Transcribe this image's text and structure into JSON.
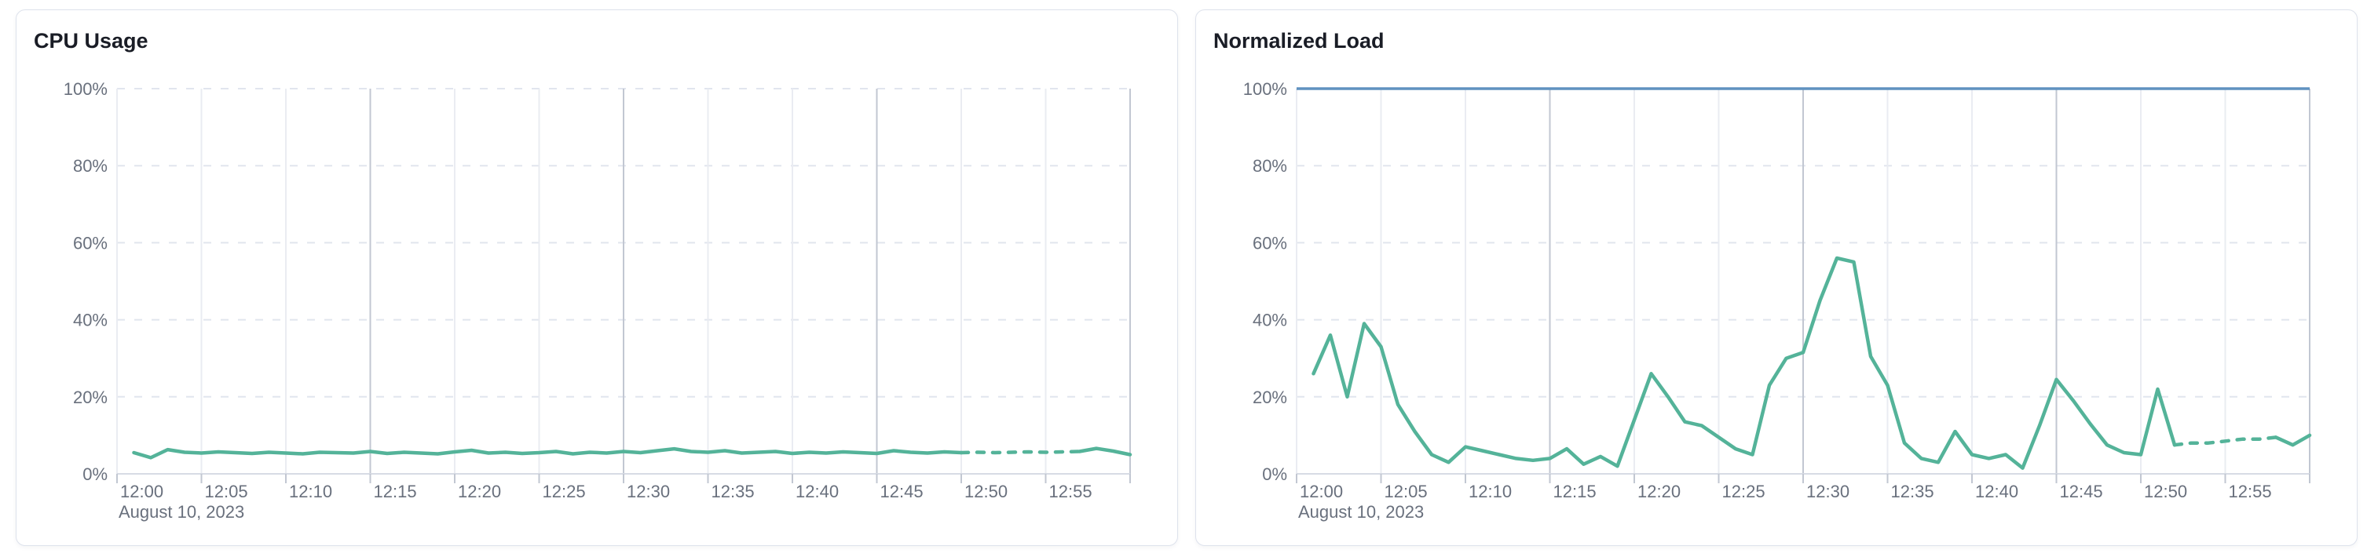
{
  "page": {
    "background": "#ffffff"
  },
  "colors": {
    "series_green": "#54b399",
    "limit_blue": "#6092c0",
    "grid_dashed": "#e1e5ee",
    "grid_minor": "#eaecf2",
    "grid_major": "#c2c7d2",
    "axis": "#d7dbe4",
    "tick_text": "#69707d",
    "title_text": "#1a1d26"
  },
  "chart_data": [
    {
      "type": "line",
      "title": "CPU Usage",
      "date_label": "August 10, 2023",
      "ylim": [
        0,
        100
      ],
      "y_tick_labels": [
        "0%",
        "20%",
        "40%",
        "60%",
        "80%",
        "100%"
      ],
      "x_tick_labels": [
        "12:00",
        "12:05",
        "12:10",
        "12:15",
        "12:20",
        "12:25",
        "12:30",
        "12:35",
        "12:40",
        "12:45",
        "12:50",
        "12:55"
      ],
      "x_tick_minutes": [
        0,
        5,
        10,
        15,
        20,
        25,
        30,
        35,
        40,
        45,
        50,
        55
      ],
      "x_domain_minutes": [
        0,
        60
      ],
      "grid": {
        "horizontal_dashed": true,
        "vertical_minor_every_min": 5,
        "vertical_major_every_min": 15,
        "top_dashed_100": true
      },
      "legend": "none",
      "series": [
        {
          "name": "cpu-usage",
          "color": "#54b399",
          "unit": "%",
          "start_minute": 1,
          "interval_minutes": 1,
          "dash_segment_minutes": [
            50,
            57
          ],
          "values": [
            5.5,
            4.2,
            6.3,
            5.6,
            5.4,
            5.7,
            5.5,
            5.3,
            5.6,
            5.4,
            5.2,
            5.6,
            5.5,
            5.4,
            5.8,
            5.3,
            5.6,
            5.4,
            5.2,
            5.7,
            6.1,
            5.4,
            5.6,
            5.3,
            5.5,
            5.8,
            5.2,
            5.6,
            5.4,
            5.8,
            5.5,
            6.0,
            6.5,
            5.8,
            5.6,
            6.0,
            5.4,
            5.6,
            5.8,
            5.3,
            5.6,
            5.4,
            5.7,
            5.5,
            5.3,
            6.0,
            5.6,
            5.4,
            5.7,
            5.5,
            5.6,
            5.5,
            5.6,
            5.7,
            5.6,
            5.7,
            5.8,
            6.6,
            5.9,
            5.0
          ]
        }
      ]
    },
    {
      "type": "line",
      "title": "Normalized Load",
      "date_label": "August 10, 2023",
      "ylim": [
        0,
        100
      ],
      "y_tick_labels": [
        "0%",
        "20%",
        "40%",
        "60%",
        "80%",
        "100%"
      ],
      "x_tick_labels": [
        "12:00",
        "12:05",
        "12:10",
        "12:15",
        "12:20",
        "12:25",
        "12:30",
        "12:35",
        "12:40",
        "12:45",
        "12:50",
        "12:55"
      ],
      "x_tick_minutes": [
        0,
        5,
        10,
        15,
        20,
        25,
        30,
        35,
        40,
        45,
        50,
        55
      ],
      "x_domain_minutes": [
        0,
        60
      ],
      "grid": {
        "horizontal_dashed": true,
        "vertical_minor_every_min": 5,
        "vertical_major_every_min": 15,
        "top_dashed_100": false
      },
      "legend": "none",
      "series": [
        {
          "name": "normalized-load",
          "color": "#54b399",
          "unit": "%",
          "start_minute": 1,
          "interval_minutes": 1,
          "dash_segment_minutes": [
            52,
            58
          ],
          "values": [
            26,
            36,
            20,
            39,
            33,
            18,
            11,
            5,
            3,
            7,
            6,
            5,
            4,
            3.5,
            4,
            6.5,
            2.5,
            4.5,
            2,
            14,
            26,
            20,
            13.5,
            12.5,
            9.5,
            6.5,
            5,
            23,
            30,
            31.5,
            45,
            56,
            55,
            30.5,
            23,
            8,
            4,
            3,
            11,
            5,
            4,
            5,
            1.5,
            12.5,
            24.5,
            19,
            13,
            7.5,
            5.5,
            5,
            22,
            7.5,
            8,
            8,
            8.5,
            9,
            9,
            9.5,
            7.5,
            10
          ]
        },
        {
          "name": "load-limit",
          "color": "#6092c0",
          "unit": "%",
          "constant": 100
        }
      ]
    }
  ]
}
